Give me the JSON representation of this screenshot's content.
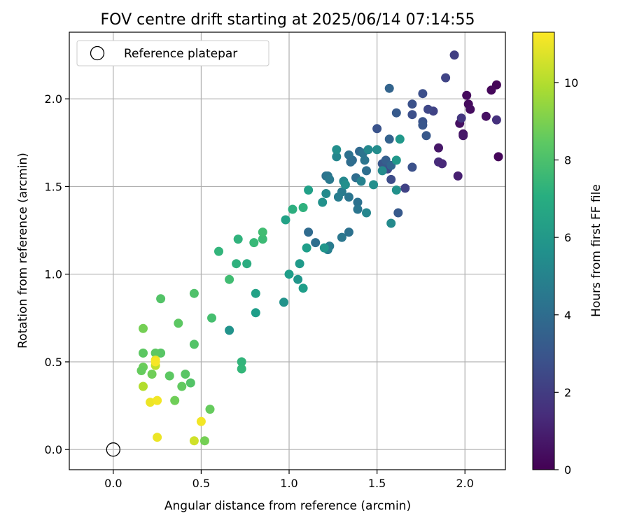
{
  "chart_data": {
    "type": "scatter",
    "title": "FOV centre drift starting at 2025/06/14 07:14:55",
    "xlabel": "Angular distance from reference (arcmin)",
    "ylabel": "Rotation from reference (arcmin)",
    "xlim": [
      -0.25,
      2.23
    ],
    "ylim": [
      -0.115,
      2.38
    ],
    "xticks": [
      "0.0",
      "0.5",
      "1.0",
      "1.5",
      "2.0"
    ],
    "yticks": [
      "0.0",
      "0.5",
      "1.0",
      "1.5",
      "2.0"
    ],
    "grid": true,
    "legend": {
      "position": "top-left",
      "label": "Reference platepar"
    },
    "reference_point": [
      0.0,
      0.0
    ],
    "colorbar": {
      "label": "Hours from first FF file",
      "min": 0,
      "max": 11.3,
      "ticks": [
        "0",
        "2",
        "4",
        "6",
        "8",
        "10"
      ],
      "colormap": "viridis"
    },
    "points": [
      [
        2.18,
        2.08,
        0.1
      ],
      [
        2.15,
        2.05,
        0.2
      ],
      [
        2.01,
        2.02,
        0.3
      ],
      [
        2.02,
        1.97,
        0.3
      ],
      [
        2.03,
        1.94,
        0.4
      ],
      [
        2.12,
        1.9,
        0.5
      ],
      [
        1.97,
        1.86,
        0.5
      ],
      [
        1.99,
        1.8,
        0.6
      ],
      [
        1.99,
        1.79,
        0.7
      ],
      [
        2.19,
        1.67,
        0.2
      ],
      [
        1.85,
        1.72,
        0.7
      ],
      [
        1.96,
        1.56,
        1.0
      ],
      [
        1.85,
        1.64,
        1.4
      ],
      [
        1.87,
        1.63,
        1.3
      ],
      [
        1.98,
        1.89,
        1.8
      ],
      [
        2.18,
        1.88,
        1.6
      ],
      [
        1.94,
        2.25,
        2.1
      ],
      [
        1.89,
        2.12,
        2.3
      ],
      [
        1.82,
        1.93,
        2.2
      ],
      [
        1.79,
        1.94,
        2.4
      ],
      [
        1.76,
        2.03,
        2.7
      ],
      [
        1.7,
        1.97,
        2.8
      ],
      [
        1.7,
        1.91,
        2.7
      ],
      [
        1.76,
        1.87,
        2.9
      ],
      [
        1.76,
        1.85,
        3.0
      ],
      [
        1.78,
        1.79,
        3.1
      ],
      [
        1.61,
        1.92,
        3.2
      ],
      [
        1.57,
        2.06,
        3.6
      ],
      [
        1.66,
        1.49,
        2.2
      ],
      [
        1.7,
        1.61,
        2.8
      ],
      [
        1.5,
        1.83,
        2.9
      ],
      [
        1.56,
        1.6,
        2.5
      ],
      [
        1.58,
        1.54,
        2.6
      ],
      [
        1.53,
        1.63,
        3.0
      ],
      [
        1.62,
        1.35,
        3.2
      ],
      [
        1.57,
        1.77,
        3.5
      ],
      [
        1.55,
        1.65,
        3.4
      ],
      [
        1.58,
        1.62,
        3.7
      ],
      [
        1.4,
        1.7,
        3.8
      ],
      [
        1.36,
        1.65,
        3.9
      ],
      [
        1.38,
        1.55,
        4.0
      ],
      [
        1.39,
        1.41,
        4.2
      ],
      [
        1.39,
        1.37,
        4.4
      ],
      [
        1.44,
        1.59,
        4.1
      ],
      [
        1.42,
        1.69,
        4.3
      ],
      [
        1.43,
        1.65,
        4.4
      ],
      [
        1.45,
        1.71,
        5.3
      ],
      [
        1.5,
        1.71,
        5.5
      ],
      [
        1.48,
        1.51,
        5.6
      ],
      [
        1.53,
        1.59,
        5.4
      ],
      [
        1.58,
        1.29,
        5.4
      ],
      [
        1.61,
        1.65,
        6.0
      ],
      [
        1.63,
        1.77,
        6.0
      ],
      [
        1.61,
        1.48,
        5.7
      ],
      [
        1.41,
        1.53,
        5.0
      ],
      [
        1.44,
        1.35,
        5.2
      ],
      [
        1.34,
        1.68,
        4.2
      ],
      [
        1.35,
        1.64,
        4.0
      ],
      [
        1.34,
        1.44,
        4.4
      ],
      [
        1.3,
        1.47,
        4.7
      ],
      [
        1.28,
        1.44,
        4.8
      ],
      [
        1.27,
        1.67,
        5.2
      ],
      [
        1.27,
        1.71,
        5.6
      ],
      [
        1.31,
        1.53,
        5.3
      ],
      [
        1.32,
        1.51,
        5.6
      ],
      [
        1.3,
        1.21,
        4.5
      ],
      [
        1.34,
        1.24,
        4.2
      ],
      [
        1.21,
        1.56,
        4.2
      ],
      [
        1.22,
        1.56,
        4.4
      ],
      [
        1.23,
        1.54,
        4.6
      ],
      [
        1.21,
        1.46,
        5.4
      ],
      [
        1.19,
        1.41,
        5.7
      ],
      [
        1.11,
        1.24,
        3.9
      ],
      [
        1.15,
        1.18,
        4.1
      ],
      [
        1.23,
        1.16,
        4.7
      ],
      [
        1.22,
        1.14,
        4.9
      ],
      [
        1.2,
        1.15,
        5.9
      ],
      [
        1.11,
        1.48,
        6.4
      ],
      [
        1.1,
        1.15,
        6.3
      ],
      [
        1.08,
        1.38,
        7.2
      ],
      [
        1.02,
        1.37,
        7.1
      ],
      [
        0.98,
        1.31,
        6.5
      ],
      [
        1.0,
        1.0,
        6.3
      ],
      [
        1.05,
        0.97,
        5.9
      ],
      [
        1.06,
        1.06,
        6.1
      ],
      [
        1.08,
        0.92,
        6.3
      ],
      [
        0.97,
        0.84,
        5.8
      ],
      [
        0.81,
        0.78,
        6.3
      ],
      [
        0.81,
        0.89,
        6.5
      ],
      [
        0.66,
        0.68,
        5.8
      ],
      [
        0.76,
        1.06,
        7.0
      ],
      [
        0.7,
        1.06,
        7.2
      ],
      [
        0.71,
        1.2,
        7.3
      ],
      [
        0.6,
        1.13,
        7.4
      ],
      [
        0.8,
        1.18,
        7.6
      ],
      [
        0.85,
        1.2,
        7.7
      ],
      [
        0.85,
        1.24,
        7.8
      ],
      [
        0.66,
        0.97,
        7.8
      ],
      [
        0.73,
        0.5,
        7.4
      ],
      [
        0.73,
        0.46,
        7.5
      ],
      [
        0.56,
        0.75,
        7.9
      ],
      [
        0.27,
        0.86,
        8.2
      ],
      [
        0.46,
        0.89,
        8.1
      ],
      [
        0.46,
        0.6,
        8.2
      ],
      [
        0.37,
        0.72,
        8.4
      ],
      [
        0.41,
        0.43,
        8.3
      ],
      [
        0.44,
        0.38,
        8.2
      ],
      [
        0.39,
        0.36,
        8.5
      ],
      [
        0.32,
        0.42,
        8.4
      ],
      [
        0.27,
        0.55,
        8.3
      ],
      [
        0.24,
        0.55,
        8.4
      ],
      [
        0.17,
        0.55,
        8.4
      ],
      [
        0.17,
        0.47,
        8.7
      ],
      [
        0.16,
        0.45,
        8.6
      ],
      [
        0.22,
        0.43,
        8.8
      ],
      [
        0.17,
        0.69,
        8.9
      ],
      [
        0.35,
        0.28,
        8.8
      ],
      [
        0.55,
        0.23,
        8.6
      ],
      [
        0.52,
        0.05,
        8.9
      ],
      [
        0.17,
        0.36,
        10.0
      ],
      [
        0.24,
        0.48,
        10.2
      ],
      [
        0.24,
        0.51,
        11.0
      ],
      [
        0.24,
        0.5,
        11.2
      ],
      [
        0.21,
        0.27,
        11.0
      ],
      [
        0.25,
        0.28,
        11.1
      ],
      [
        0.46,
        0.05,
        10.5
      ],
      [
        0.5,
        0.16,
        11.1
      ],
      [
        0.25,
        0.07,
        11.0
      ]
    ]
  }
}
